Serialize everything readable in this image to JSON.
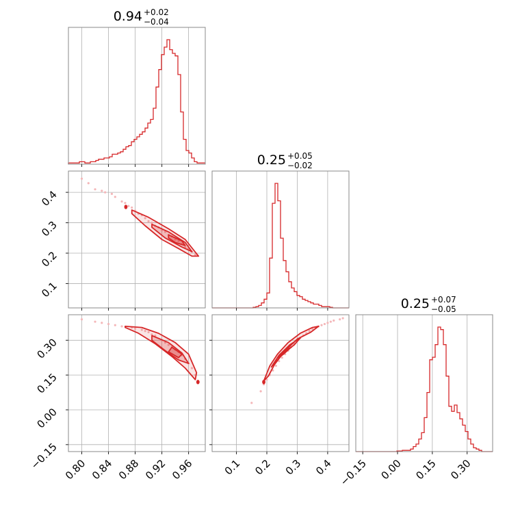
{
  "chart_data": {
    "type": "corner",
    "color": "#d62728",
    "point_color": "#f4b7b9",
    "parameters": [
      {
        "title": {
          "value": "0.94",
          "plus": "+0.02",
          "minus": "−0.04"
        },
        "range": [
          0.78,
          0.985
        ],
        "ticks": [
          {
            "v": 0.8,
            "label": "0.80"
          },
          {
            "v": 0.84,
            "label": "0.84"
          },
          {
            "v": 0.88,
            "label": "0.88"
          },
          {
            "v": 0.92,
            "label": "0.92"
          },
          {
            "v": 0.96,
            "label": "0.96"
          }
        ],
        "hist": {
          "edges_start": 0.78,
          "bin_width": 0.0041,
          "counts": [
            0.01,
            0.01,
            0.01,
            0.01,
            0.02,
            0.02,
            0.01,
            0.01,
            0.02,
            0.02,
            0.03,
            0.04,
            0.04,
            0.05,
            0.05,
            0.06,
            0.08,
            0.08,
            0.09,
            0.1,
            0.12,
            0.14,
            0.15,
            0.18,
            0.2,
            0.22,
            0.24,
            0.26,
            0.29,
            0.33,
            0.36,
            0.45,
            0.62,
            0.76,
            0.88,
            0.94,
            1.0,
            0.92,
            0.89,
            0.87,
            0.72,
            0.42,
            0.2,
            0.11,
            0.09,
            0.05,
            0.02,
            0.01,
            0.01,
            0.01
          ]
        }
      },
      {
        "title": {
          "value": "0.25",
          "plus": "+0.05",
          "minus": "−0.02"
        },
        "range": [
          0.02,
          0.47
        ],
        "ticks": [
          {
            "v": 0.1,
            "label": "0.1"
          },
          {
            "v": 0.2,
            "label": "0.2"
          },
          {
            "v": 0.3,
            "label": "0.3"
          },
          {
            "v": 0.4,
            "label": "0.4"
          }
        ],
        "hist": {
          "edges_start": 0.02,
          "bin_width": 0.009,
          "counts": [
            0,
            0,
            0,
            0,
            0,
            0,
            0,
            0,
            0,
            0,
            0,
            0,
            0,
            0,
            0,
            0.005,
            0.01,
            0.02,
            0.04,
            0.07,
            0.12,
            0.4,
            0.84,
            1.0,
            0.86,
            0.56,
            0.38,
            0.29,
            0.21,
            0.16,
            0.13,
            0.1,
            0.09,
            0.07,
            0.06,
            0.05,
            0.04,
            0.03,
            0.03,
            0.02,
            0.01,
            0.01,
            0.01,
            0.005,
            0,
            0,
            0,
            0,
            0,
            0
          ]
        }
      },
      {
        "title": {
          "value": "0.25",
          "plus": "+0.07",
          "minus": "−0.05"
        },
        "range": [
          -0.18,
          0.41
        ],
        "ticks": [
          {
            "v": -0.15,
            "label": "−0.15"
          },
          {
            "v": 0.0,
            "label": "0.00"
          },
          {
            "v": 0.15,
            "label": "0.15"
          },
          {
            "v": 0.3,
            "label": "0.30"
          }
        ],
        "hist": {
          "edges_start": -0.18,
          "bin_width": 0.0118,
          "counts": [
            0,
            0,
            0,
            0,
            0,
            0,
            0,
            0,
            0,
            0,
            0,
            0,
            0,
            0,
            0,
            0.005,
            0.005,
            0.01,
            0.01,
            0.01,
            0.02,
            0.04,
            0.06,
            0.1,
            0.15,
            0.27,
            0.47,
            0.73,
            0.75,
            0.85,
            0.99,
            0.97,
            0.85,
            0.6,
            0.36,
            0.32,
            0.37,
            0.31,
            0.26,
            0.21,
            0.16,
            0.1,
            0.06,
            0.03,
            0.02,
            0.01,
            0,
            0,
            0,
            0
          ]
        }
      }
    ],
    "pairs": [
      {
        "row": 1,
        "col": 0,
        "samples": [
          [
            0.8,
            0.445
          ],
          [
            0.82,
            0.41
          ],
          [
            0.835,
            0.4
          ],
          [
            0.85,
            0.385
          ],
          [
            0.86,
            0.37
          ],
          [
            0.87,
            0.355
          ],
          [
            0.88,
            0.34
          ],
          [
            0.89,
            0.325
          ],
          [
            0.9,
            0.305
          ],
          [
            0.91,
            0.29
          ],
          [
            0.92,
            0.275
          ],
          [
            0.93,
            0.26
          ],
          [
            0.94,
            0.245
          ],
          [
            0.95,
            0.23
          ],
          [
            0.96,
            0.215
          ],
          [
            0.97,
            0.195
          ],
          [
            0.845,
            0.395
          ],
          [
            0.865,
            0.365
          ],
          [
            0.885,
            0.33
          ],
          [
            0.905,
            0.3
          ],
          [
            0.925,
            0.27
          ],
          [
            0.945,
            0.24
          ],
          [
            0.965,
            0.205
          ],
          [
            0.875,
            0.35
          ],
          [
            0.915,
            0.285
          ],
          [
            0.955,
            0.22
          ],
          [
            0.83,
            0.405
          ],
          [
            0.895,
            0.315
          ],
          [
            0.935,
            0.255
          ],
          [
            0.81,
            0.43
          ]
        ],
        "contours": [
          [
            [
              0.875,
              0.342
            ],
            [
              0.9,
              0.318
            ],
            [
              0.93,
              0.28
            ],
            [
              0.955,
              0.245
            ],
            [
              0.975,
              0.19
            ],
            [
              0.965,
              0.19
            ],
            [
              0.945,
              0.215
            ],
            [
              0.92,
              0.245
            ],
            [
              0.895,
              0.29
            ],
            [
              0.875,
              0.33
            ]
          ],
          [
            [
              0.905,
              0.295
            ],
            [
              0.93,
              0.27
            ],
            [
              0.955,
              0.235
            ],
            [
              0.965,
              0.205
            ],
            [
              0.95,
              0.22
            ],
            [
              0.925,
              0.25
            ],
            [
              0.905,
              0.285
            ]
          ],
          [
            [
              0.93,
              0.26
            ],
            [
              0.95,
              0.24
            ],
            [
              0.955,
              0.225
            ],
            [
              0.94,
              0.235
            ],
            [
              0.93,
              0.25
            ]
          ]
        ],
        "blob": [
          0.866,
          0.352
        ],
        "x_param": 0,
        "y_param": 1
      },
      {
        "row": 2,
        "col": 0,
        "samples": [
          [
            0.8,
            0.39
          ],
          [
            0.82,
            0.38
          ],
          [
            0.84,
            0.37
          ],
          [
            0.86,
            0.36
          ],
          [
            0.875,
            0.355
          ],
          [
            0.89,
            0.345
          ],
          [
            0.9,
            0.335
          ],
          [
            0.91,
            0.32
          ],
          [
            0.92,
            0.3
          ],
          [
            0.93,
            0.28
          ],
          [
            0.94,
            0.26
          ],
          [
            0.95,
            0.235
          ],
          [
            0.96,
            0.2
          ],
          [
            0.97,
            0.15
          ],
          [
            0.975,
            0.12
          ],
          [
            0.85,
            0.365
          ],
          [
            0.88,
            0.35
          ],
          [
            0.905,
            0.325
          ],
          [
            0.925,
            0.29
          ],
          [
            0.945,
            0.25
          ],
          [
            0.965,
            0.18
          ],
          [
            0.83,
            0.375
          ],
          [
            0.895,
            0.34
          ],
          [
            0.935,
            0.27
          ],
          [
            0.955,
            0.22
          ]
        ],
        "contours": [
          [
            [
              0.865,
              0.36
            ],
            [
              0.89,
              0.355
            ],
            [
              0.915,
              0.33
            ],
            [
              0.94,
              0.29
            ],
            [
              0.96,
              0.24
            ],
            [
              0.972,
              0.16
            ],
            [
              0.97,
              0.13
            ],
            [
              0.955,
              0.18
            ],
            [
              0.935,
              0.23
            ],
            [
              0.91,
              0.285
            ],
            [
              0.885,
              0.33
            ],
            [
              0.865,
              0.355
            ]
          ],
          [
            [
              0.905,
              0.32
            ],
            [
              0.93,
              0.29
            ],
            [
              0.95,
              0.245
            ],
            [
              0.96,
              0.2
            ],
            [
              0.945,
              0.215
            ],
            [
              0.925,
              0.255
            ],
            [
              0.905,
              0.3
            ]
          ],
          [
            [
              0.935,
              0.27
            ],
            [
              0.95,
              0.24
            ],
            [
              0.945,
              0.225
            ],
            [
              0.93,
              0.25
            ]
          ]
        ],
        "blob": [
          0.974,
          0.12
        ],
        "x_param": 0,
        "y_param": 2
      },
      {
        "row": 2,
        "col": 1,
        "samples": [
          [
            0.15,
            0.03
          ],
          [
            0.18,
            0.08
          ],
          [
            0.2,
            0.13
          ],
          [
            0.22,
            0.17
          ],
          [
            0.24,
            0.21
          ],
          [
            0.26,
            0.24
          ],
          [
            0.28,
            0.27
          ],
          [
            0.3,
            0.3
          ],
          [
            0.32,
            0.32
          ],
          [
            0.34,
            0.34
          ],
          [
            0.36,
            0.355
          ],
          [
            0.38,
            0.365
          ],
          [
            0.4,
            0.375
          ],
          [
            0.42,
            0.385
          ],
          [
            0.45,
            0.395
          ],
          [
            0.21,
            0.15
          ],
          [
            0.23,
            0.19
          ],
          [
            0.25,
            0.225
          ],
          [
            0.27,
            0.255
          ],
          [
            0.29,
            0.285
          ],
          [
            0.31,
            0.31
          ],
          [
            0.33,
            0.33
          ],
          [
            0.35,
            0.35
          ],
          [
            0.37,
            0.36
          ],
          [
            0.39,
            0.37
          ],
          [
            0.41,
            0.38
          ],
          [
            0.19,
            0.11
          ],
          [
            0.44,
            0.39
          ]
        ],
        "contours": [
          [
            [
              0.19,
              0.125
            ],
            [
              0.21,
              0.19
            ],
            [
              0.235,
              0.24
            ],
            [
              0.27,
              0.29
            ],
            [
              0.31,
              0.33
            ],
            [
              0.35,
              0.355
            ],
            [
              0.37,
              0.36
            ],
            [
              0.345,
              0.335
            ],
            [
              0.3,
              0.305
            ],
            [
              0.26,
              0.255
            ],
            [
              0.225,
              0.195
            ],
            [
              0.205,
              0.145
            ],
            [
              0.19,
              0.125
            ]
          ],
          [
            [
              0.215,
              0.185
            ],
            [
              0.24,
              0.235
            ],
            [
              0.275,
              0.28
            ],
            [
              0.31,
              0.31
            ],
            [
              0.29,
              0.28
            ],
            [
              0.255,
              0.245
            ],
            [
              0.225,
              0.2
            ]
          ],
          [
            [
              0.235,
              0.225
            ],
            [
              0.26,
              0.255
            ],
            [
              0.28,
              0.27
            ],
            [
              0.255,
              0.24
            ],
            [
              0.24,
              0.225
            ]
          ]
        ],
        "blob": [
          0.19,
          0.12
        ],
        "x_param": 1,
        "y_param": 2
      }
    ]
  }
}
